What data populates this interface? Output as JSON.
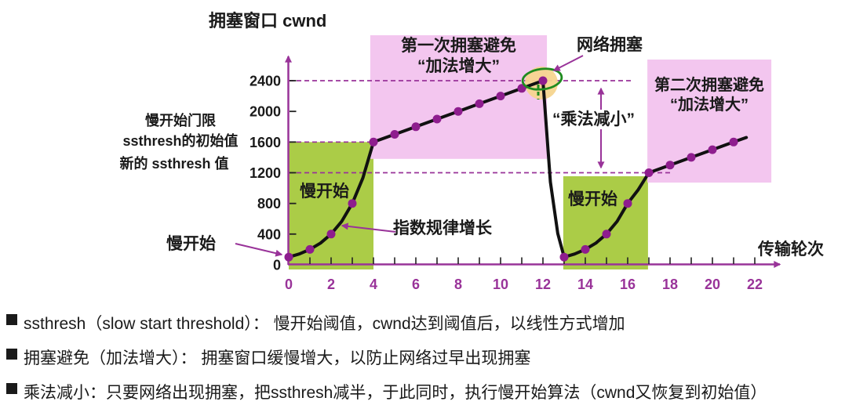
{
  "chart_data": {
    "type": "line",
    "title": "拥塞窗口 cwnd",
    "xlabel": "传输轮次",
    "ylabel": "拥塞窗口 cwnd",
    "xlim": [
      0,
      23.3
    ],
    "ylim": [
      0,
      2800
    ],
    "grid": "dashed-threshold-lines-only",
    "y_ticks": [
      0,
      400,
      800,
      1200,
      1600,
      2000,
      2400
    ],
    "x_tick_labels": [
      0,
      2,
      4,
      6,
      8,
      10,
      12,
      14,
      16,
      18,
      20,
      22
    ],
    "x_minor_tick_max": 22,
    "series": [
      {
        "name": "cwnd",
        "points": [
          [
            0,
            100
          ],
          [
            1,
            200
          ],
          [
            2,
            400
          ],
          [
            3,
            800
          ],
          [
            4,
            1600
          ],
          [
            5,
            1700
          ],
          [
            6,
            1800
          ],
          [
            7,
            1900
          ],
          [
            8,
            2000
          ],
          [
            9,
            2100
          ],
          [
            10,
            2200
          ],
          [
            11,
            2300
          ],
          [
            12,
            2400
          ],
          [
            13,
            100
          ],
          [
            14,
            200
          ],
          [
            15,
            400
          ],
          [
            16,
            800
          ],
          [
            17,
            1200
          ],
          [
            18,
            1300
          ],
          [
            19,
            1400
          ],
          [
            20,
            1500
          ],
          [
            21,
            1600
          ]
        ]
      }
    ],
    "line_end": [
      21.6,
      1660
    ],
    "ssthresh_initial": 1600,
    "ssthresh_new": 1200,
    "congestion_point": [
      12,
      2400
    ],
    "dashed_levels": [
      {
        "v": 2400,
        "t1": 16.19
      },
      {
        "v": 1600,
        "t1": 4.07
      },
      {
        "v": 1200,
        "t1": 18.15
      }
    ],
    "regions": [
      {
        "name": "slow-start-1",
        "color": "#abcc47",
        "x": [
          0,
          4
        ],
        "y": [
          0,
          1600
        ]
      },
      {
        "name": "congestion-avoidance-1",
        "color": "#f3c6ef",
        "x": [
          3.85,
          12.19
        ],
        "y": [
          1380,
          2992
        ]
      },
      {
        "name": "slow-start-2",
        "color": "#abcc47",
        "x": [
          12.96,
          16.96
        ],
        "y": [
          0,
          1154
        ]
      },
      {
        "name": "congestion-avoidance-2",
        "color": "#f3c6ef",
        "x": [
          16.93,
          22.78
        ],
        "y": [
          1072,
          2676
        ]
      }
    ]
  },
  "annotations": {
    "threshold_label_line1": "慢开始门限",
    "threshold_label_line2": "ssthresh的初始值",
    "new_ssthresh_label": "新的 ssthresh 值",
    "slow_start_pointer": "慢开始",
    "slow_start_region1": "慢开始",
    "slow_start_region2": "慢开始",
    "ca1_title": "第一次拥塞避免",
    "ca1_sub": "“加法增大”",
    "ca2_title": "第二次拥塞避免",
    "ca2_sub": "“加法增大”",
    "network_congestion": "网络拥塞",
    "multiplicative_decrease": "“乘法减小”",
    "exponential_growth": "指数规律增长"
  },
  "bullets": [
    "ssthresh（slow start threshold）： 慢开始阈值，cwnd达到阈值后，以线性方式增加",
    "拥塞避免（加法增大）： 拥塞窗口缓慢增大，以防止网络过早出现拥塞",
    "乘法减小：只要网络出现拥塞，把ssthresh减半，于此同时，执行慢开始算法（cwnd又恢复到初始值）"
  ],
  "colors": {
    "axis_purple": "#993399",
    "curve_black": "#111111",
    "dot_magenta": "#8e1d8e",
    "green_region": "#abcc47",
    "pink_region": "#f3c6ef",
    "highlight_tan": "#f6d58f",
    "annotation_green": "#1f8b1f",
    "text_black": "#1a1a1a"
  }
}
